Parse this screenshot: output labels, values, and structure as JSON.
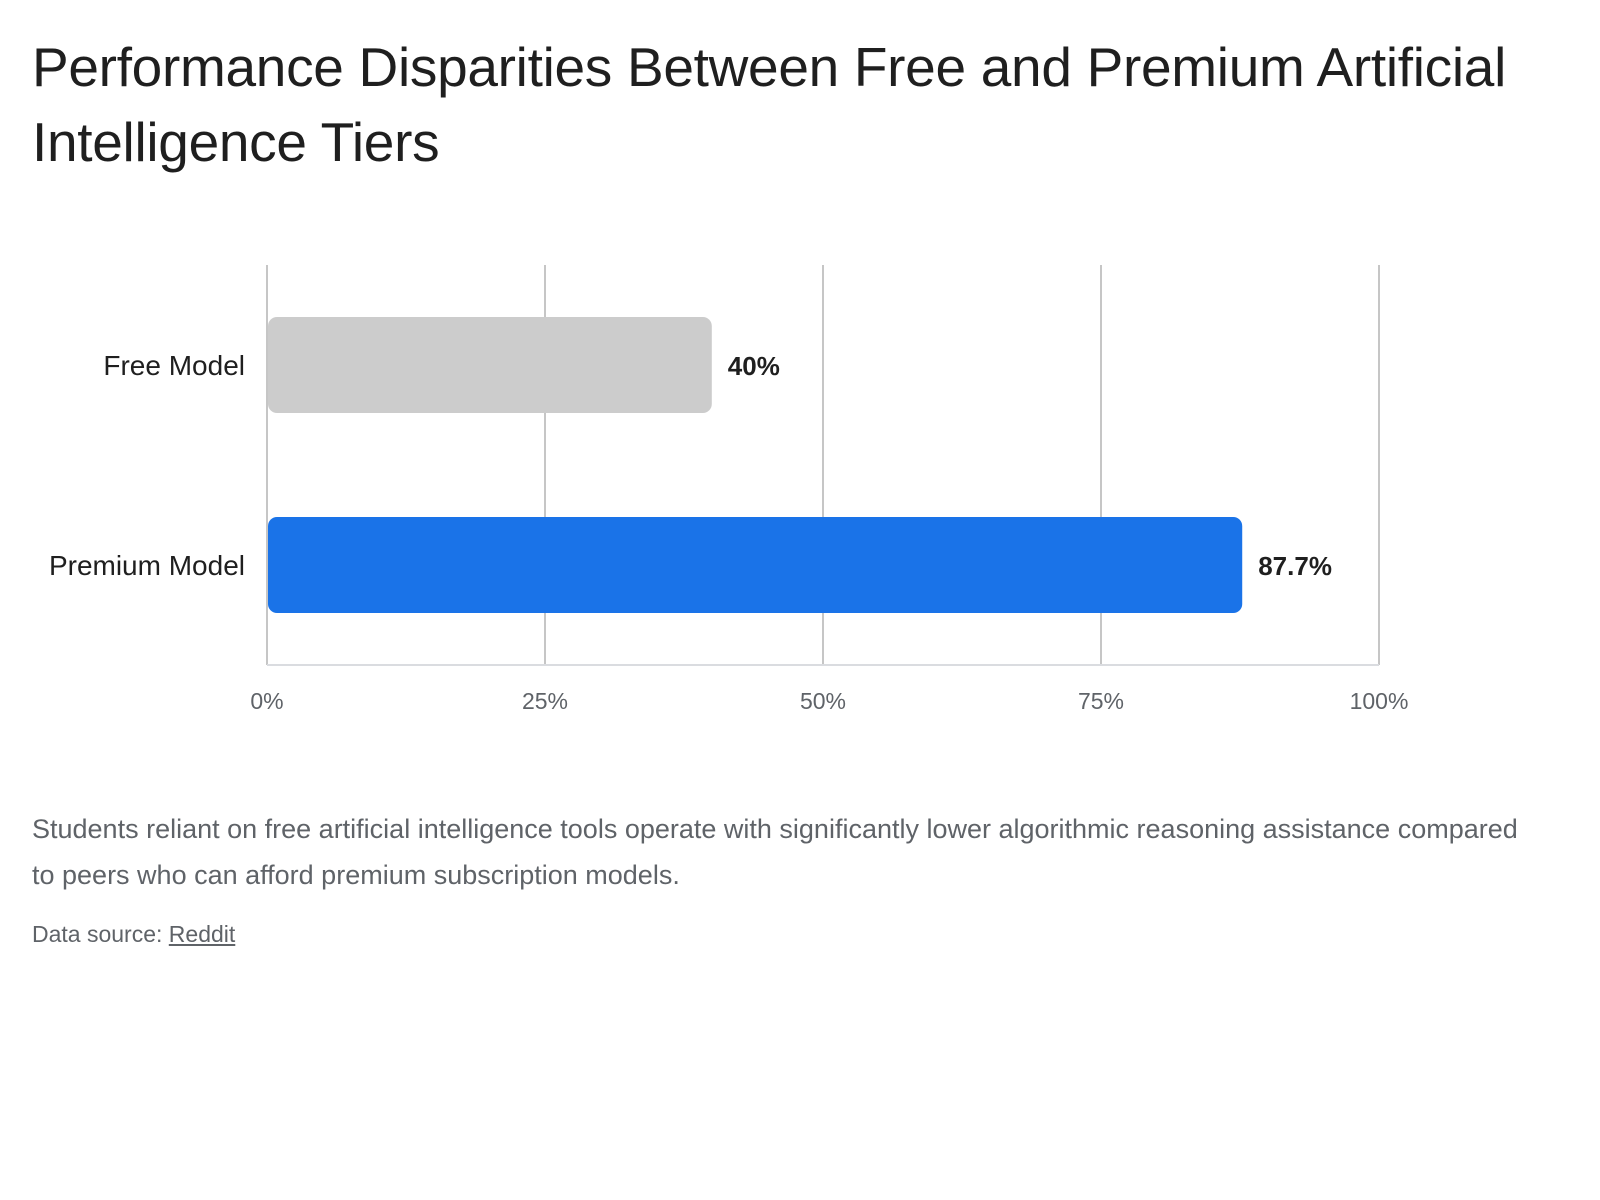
{
  "header": {
    "title": "Performance Disparities Between Free and Premium Artificial Intelligence Tiers"
  },
  "chart_data": {
    "type": "bar",
    "orientation": "horizontal",
    "title": "Performance Disparities Between Free and Premium Artificial Intelligence Tiers",
    "categories": [
      "Free Model",
      "Premium Model"
    ],
    "values": [
      40,
      87.7
    ],
    "value_labels": [
      "40%",
      "87.7%"
    ],
    "bar_colors": [
      "#cccccc",
      "#1a73e8"
    ],
    "xlim": [
      0,
      100
    ],
    "x_ticks": [
      0,
      25,
      50,
      75,
      100
    ],
    "x_tick_labels": [
      "0%",
      "25%",
      "50%",
      "75%",
      "100%"
    ],
    "xlabel": "",
    "ylabel": "",
    "grid": true,
    "legend": "none"
  },
  "footer": {
    "caption": "Students reliant on free artificial intelligence tools operate with significantly lower algorithmic reasoning assistance compared to peers who can afford premium subscription models.",
    "source_prefix": "Data source: ",
    "source_link": "Reddit"
  },
  "colors": {
    "grid": "#c6c6c6",
    "axis": "#dadce0",
    "label_text": "#1f1f1f",
    "tick_text": "#5f6368",
    "value_text": "#1f1f1f"
  }
}
